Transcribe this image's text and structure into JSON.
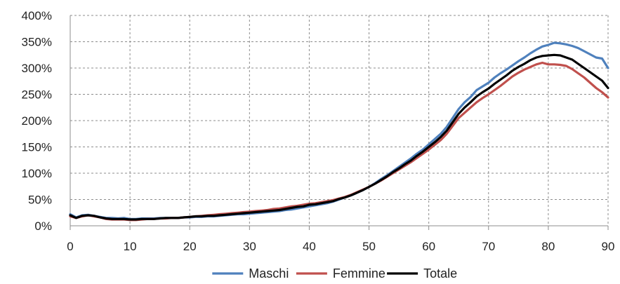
{
  "chart_data": {
    "type": "line",
    "title": "",
    "xlabel": "",
    "ylabel": "",
    "xlim": [
      0,
      90
    ],
    "ylim": [
      0,
      400
    ],
    "x_ticks": [
      "0",
      "10",
      "20",
      "30",
      "40",
      "50",
      "60",
      "70",
      "80",
      "90"
    ],
    "y_ticks": [
      "0%",
      "50%",
      "100%",
      "150%",
      "200%",
      "250%",
      "300%",
      "350%",
      "400%"
    ],
    "grid": true,
    "grid_style": "dashed",
    "legend_position": "bottom",
    "x": [
      0,
      1,
      2,
      3,
      4,
      5,
      6,
      7,
      8,
      9,
      10,
      11,
      12,
      13,
      14,
      15,
      16,
      17,
      18,
      19,
      20,
      21,
      22,
      23,
      24,
      25,
      26,
      27,
      28,
      29,
      30,
      31,
      32,
      33,
      34,
      35,
      36,
      37,
      38,
      39,
      40,
      41,
      42,
      43,
      44,
      45,
      46,
      47,
      48,
      49,
      50,
      51,
      52,
      53,
      54,
      55,
      56,
      57,
      58,
      59,
      60,
      61,
      62,
      63,
      64,
      65,
      66,
      67,
      68,
      69,
      70,
      71,
      72,
      73,
      74,
      75,
      76,
      77,
      78,
      79,
      80,
      81,
      82,
      83,
      84,
      85,
      86,
      87,
      88,
      89,
      90
    ],
    "series": [
      {
        "name": "Maschi",
        "color": "#4f81bd",
        "values": [
          22,
          16,
          20,
          21,
          19,
          17,
          15,
          15,
          14,
          15,
          13,
          13,
          14,
          14,
          14,
          15,
          15,
          15,
          15,
          16,
          16,
          17,
          17,
          18,
          18,
          19,
          20,
          21,
          22,
          22,
          23,
          24,
          25,
          26,
          27,
          28,
          30,
          31,
          33,
          35,
          37,
          39,
          41,
          43,
          46,
          50,
          54,
          58,
          63,
          68,
          74,
          81,
          89,
          96,
          104,
          112,
          120,
          128,
          137,
          145,
          155,
          165,
          175,
          188,
          205,
          222,
          235,
          245,
          258,
          265,
          272,
          282,
          290,
          297,
          305,
          313,
          320,
          328,
          335,
          341,
          344,
          348,
          347,
          345,
          342,
          338,
          332,
          326,
          320,
          318,
          300
        ],
        "values_note": ""
      },
      {
        "name": "Femmine",
        "color": "#c0504d",
        "values": [
          18,
          15,
          18,
          20,
          18,
          16,
          13,
          12,
          12,
          12,
          11,
          11,
          12,
          13,
          13,
          14,
          14,
          15,
          15,
          16,
          17,
          18,
          19,
          20,
          21,
          22,
          23,
          24,
          25,
          26,
          27,
          28,
          29,
          30,
          32,
          33,
          35,
          37,
          38,
          40,
          42,
          43,
          45,
          47,
          49,
          52,
          55,
          59,
          64,
          69,
          74,
          80,
          86,
          93,
          100,
          107,
          114,
          121,
          129,
          137,
          145,
          154,
          163,
          175,
          190,
          205,
          215,
          225,
          235,
          243,
          250,
          258,
          266,
          275,
          284,
          291,
          297,
          302,
          307,
          310,
          307,
          307,
          306,
          304,
          298,
          290,
          282,
          272,
          262,
          254,
          244
        ],
        "values_note": ""
      },
      {
        "name": "Totale",
        "color": "#000000",
        "values": [
          20,
          15,
          19,
          20,
          19,
          16,
          14,
          13,
          13,
          13,
          12,
          12,
          13,
          13,
          13,
          14,
          15,
          15,
          15,
          16,
          17,
          18,
          18,
          19,
          19,
          20,
          21,
          22,
          23,
          24,
          25,
          26,
          27,
          28,
          29,
          30,
          32,
          34,
          36,
          37,
          40,
          41,
          43,
          45,
          47,
          51,
          54,
          58,
          63,
          68,
          74,
          80,
          87,
          94,
          102,
          109,
          117,
          124,
          133,
          141,
          150,
          159,
          169,
          181,
          197,
          213,
          225,
          235,
          246,
          254,
          261,
          270,
          278,
          286,
          295,
          302,
          308,
          315,
          320,
          323,
          324,
          325,
          324,
          320,
          316,
          308,
          300,
          292,
          284,
          276,
          262
        ],
        "values_note": ""
      }
    ]
  }
}
